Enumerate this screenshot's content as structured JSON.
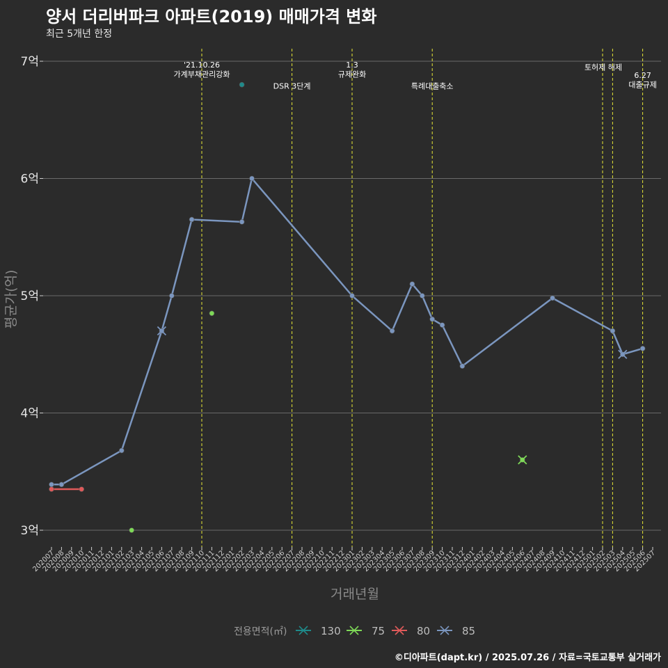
{
  "header": {
    "title": "양서 더리버파크 아파트(2019) 매매가격 변화",
    "subtitle": "최근 5개년 한정",
    "caption": "©디아파트(dapt.kr) / 2025.07.26 / 자료=국토교통부 실거래가"
  },
  "chart_data": {
    "type": "line",
    "xlabel": "거래년월",
    "ylabel": "평균가(억)",
    "ylim": [
      2.85,
      7.1
    ],
    "y_ticks": [
      {
        "value": 3,
        "label": "3억"
      },
      {
        "value": 4,
        "label": "4억"
      },
      {
        "value": 5,
        "label": "5억"
      },
      {
        "value": 6,
        "label": "6억"
      },
      {
        "value": 7,
        "label": "7억"
      }
    ],
    "categories": [
      "202007",
      "202008",
      "202009",
      "202010",
      "202011",
      "202012",
      "202101",
      "202102",
      "202103",
      "202104",
      "202105",
      "202106",
      "202107",
      "202108",
      "202109",
      "202110",
      "202111",
      "202112",
      "202201",
      "202202",
      "202203",
      "202204",
      "202205",
      "202206",
      "202207",
      "202208",
      "202209",
      "202210",
      "202211",
      "202212",
      "202301",
      "202302",
      "202303",
      "202304",
      "202305",
      "202306",
      "202307",
      "202308",
      "202309",
      "202310",
      "202311",
      "202312",
      "202401",
      "202402",
      "202403",
      "202404",
      "202405",
      "202406",
      "202407",
      "202408",
      "202409",
      "202410",
      "202411",
      "202412",
      "202501",
      "202502",
      "202503",
      "202504",
      "202505",
      "202506",
      "202507"
    ],
    "legend_title": "전용면적(㎡)",
    "legend_position": "bottom",
    "grid": true,
    "series": [
      {
        "name": "130",
        "color": "#1f8a8a",
        "points": [
          {
            "x": "202202",
            "y": 6.8
          }
        ]
      },
      {
        "name": "75",
        "color": "#7ed957",
        "points": [
          {
            "x": "202103",
            "y": 3.0
          },
          {
            "x": "202111",
            "y": 4.85
          },
          {
            "x": "202406",
            "y": 3.6
          }
        ]
      },
      {
        "name": "80",
        "color": "#e05a5a",
        "points": [
          {
            "x": "202007",
            "y": 3.35
          },
          {
            "x": "202010",
            "y": 3.35
          }
        ]
      },
      {
        "name": "85",
        "color": "#7b96bf",
        "points": [
          {
            "x": "202007",
            "y": 3.39
          },
          {
            "x": "202008",
            "y": 3.39
          },
          {
            "x": "202102",
            "y": 3.68
          },
          {
            "x": "202106",
            "y": 4.7
          },
          {
            "x": "202107",
            "y": 5.0
          },
          {
            "x": "202109",
            "y": 5.65
          },
          {
            "x": "202202",
            "y": 5.63
          },
          {
            "x": "202203",
            "y": 6.0
          },
          {
            "x": "202301",
            "y": 5.0
          },
          {
            "x": "202305",
            "y": 4.7
          },
          {
            "x": "202307",
            "y": 5.1
          },
          {
            "x": "202308",
            "y": 5.0
          },
          {
            "x": "202309",
            "y": 4.8
          },
          {
            "x": "202310",
            "y": 4.75
          },
          {
            "x": "202312",
            "y": 4.4
          },
          {
            "x": "202409",
            "y": 4.98
          },
          {
            "x": "202503",
            "y": 4.7
          },
          {
            "x": "202504",
            "y": 4.5
          },
          {
            "x": "202506",
            "y": 4.55
          }
        ]
      }
    ],
    "cross_markers": [
      {
        "series": "85",
        "x": "202106",
        "y": 4.7
      },
      {
        "series": "75",
        "x": "202406",
        "y": 3.6
      },
      {
        "series": "85",
        "x": "202504",
        "y": 4.5
      }
    ],
    "annotations": [
      {
        "x": "202110",
        "lines": [
          "'21.10.26",
          "가계부채관리강화"
        ],
        "label_y": [
          6.97,
          6.89
        ],
        "anchor": "middle"
      },
      {
        "x": "202207",
        "lines": [
          "DSR 3단계"
        ],
        "label_y": [
          6.79
        ],
        "anchor": "middle"
      },
      {
        "x": "202301",
        "lines": [
          "1.3",
          "규제완화"
        ],
        "label_y": [
          6.97,
          6.89
        ],
        "anchor": "middle"
      },
      {
        "x": "202309",
        "lines": [
          "특례대출축소"
        ],
        "label_y": [
          6.79
        ],
        "anchor": "middle"
      },
      {
        "x": "202502",
        "lines": [
          "토허제 해제"
        ],
        "label_y": [
          6.95
        ],
        "anchor": "middle"
      },
      {
        "x": "202503",
        "lines": [],
        "label_y": [],
        "anchor": "middle"
      },
      {
        "x": "202506",
        "lines": [
          "6.27",
          "대출규제"
        ],
        "label_y": [
          6.88,
          6.8
        ],
        "anchor": "middle"
      }
    ]
  }
}
